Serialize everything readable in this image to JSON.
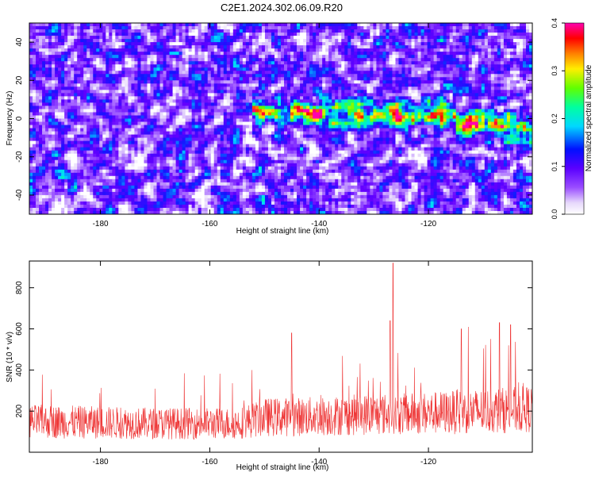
{
  "title": "C2E1.2024.302.06.09.R20",
  "chart_data": [
    {
      "type": "heatmap",
      "title": "C2E1.2024.302.06.09.R20",
      "xlabel": "Height of straight line (km)",
      "ylabel": "Frequency (Hz)",
      "xlim": [
        -193,
        -101
      ],
      "ylim": [
        -50,
        50
      ],
      "xticks": [
        -180,
        -160,
        -140,
        -120
      ],
      "yticks": [
        -40,
        -20,
        0,
        20,
        40
      ],
      "colorbar": {
        "label": "Normalized spectral amplitude",
        "range": [
          0.0,
          0.4
        ],
        "ticks": [
          0.0,
          0.1,
          0.2,
          0.3,
          0.4
        ],
        "scale": "rainbow: white-lavender, purple, blue, cyan, green, yellow, red, magenta"
      },
      "features": [
        {
          "description": "band of elevated amplitude",
          "x_range": [
            -152,
            -101
          ],
          "center_freq_hz": [
            0,
            3,
            -5
          ],
          "peak_amplitude": 0.35
        }
      ],
      "grid": false
    },
    {
      "type": "line",
      "xlabel": "Height of straight line (km)",
      "ylabel": "SNR (10 * v/v)",
      "xlim": [
        -193,
        -101
      ],
      "ylim": [
        0,
        930
      ],
      "xticks": [
        -180,
        -160,
        -140,
        -120
      ],
      "yticks": [
        200,
        400,
        600,
        800
      ],
      "series": [
        {
          "color": "#ee3333",
          "baseline_by_x": {
            "x": [
              -193,
              -170,
              -155,
              -150,
              -140,
              -130,
              -125,
              -120,
              -110,
              -101
            ],
            "y": [
              150,
              140,
              140,
              170,
              175,
              185,
              185,
              190,
              200,
              210
            ]
          },
          "notable_peaks": [
            {
              "x": -126.5,
              "y": 920
            },
            {
              "x": -127,
              "y": 640
            },
            {
              "x": -145,
              "y": 580
            },
            {
              "x": -114,
              "y": 600
            },
            {
              "x": -107,
              "y": 630
            },
            {
              "x": -105,
              "y": 620
            }
          ]
        }
      ],
      "grid": false
    }
  ]
}
